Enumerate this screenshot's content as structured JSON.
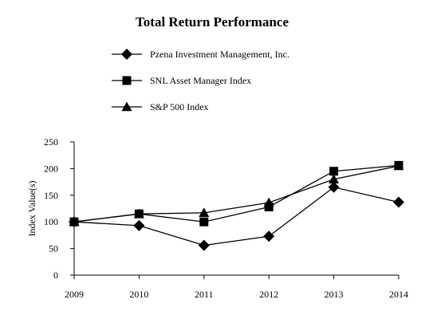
{
  "chart_data": {
    "type": "line",
    "title": "Total Return Performance",
    "xlabel": "",
    "ylabel": "Index Value(s)",
    "categories": [
      "2009",
      "2010",
      "2011",
      "2012",
      "2013",
      "2014"
    ],
    "ylim": [
      0,
      250
    ],
    "yticks": [
      0,
      50,
      100,
      150,
      200,
      250
    ],
    "grid": false,
    "legend_position": "top",
    "series": [
      {
        "name": "Pzena Investment Management, Inc.",
        "marker": "diamond",
        "values": [
          100,
          93,
          56,
          73,
          165,
          137
        ]
      },
      {
        "name": "SNL Asset Manager Index",
        "marker": "square",
        "values": [
          100,
          115,
          100,
          128,
          195,
          206
        ]
      },
      {
        "name": "S&P 500 Index",
        "marker": "triangle",
        "values": [
          100,
          115,
          117,
          136,
          180,
          205
        ]
      }
    ]
  },
  "colors": {
    "line": "#000000",
    "marker": "#000000",
    "background": "#ffffff"
  }
}
